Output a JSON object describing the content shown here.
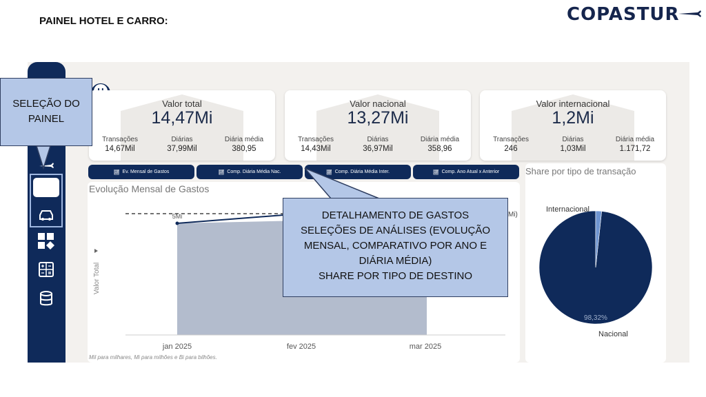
{
  "slide": {
    "title": "PAINEL HOTEL E CARRO:"
  },
  "logo": {
    "text": "COPASTUR"
  },
  "colors": {
    "navy": "#0f2a5a",
    "callout": "#b4c7e7",
    "area": "#b3bccd",
    "pie_main": "#0f2a5a",
    "pie_small": "#6f95d1"
  },
  "kpis": [
    {
      "label": "Valor total",
      "value": "14,47Mi",
      "subs": [
        {
          "label": "Transações",
          "value": "14,67Mil"
        },
        {
          "label": "Diárias",
          "value": "37,99Mil"
        },
        {
          "label": "Diária média",
          "value": "380,95"
        }
      ]
    },
    {
      "label": "Valor nacional",
      "value": "13,27Mi",
      "subs": [
        {
          "label": "Transações",
          "value": "14,43Mil"
        },
        {
          "label": "Diárias",
          "value": "36,97Mil"
        },
        {
          "label": "Diária média",
          "value": "358,96"
        }
      ]
    },
    {
      "label": "Valor internacional",
      "value": "1,2Mi",
      "subs": [
        {
          "label": "Transações",
          "value": "246"
        },
        {
          "label": "Diárias",
          "value": "1,03Mil"
        },
        {
          "label": "Diária média",
          "value": "1.171,72"
        }
      ]
    }
  ],
  "buttons": [
    {
      "label": "Ev. Mensal de Gastos"
    },
    {
      "label": "Comp. Diária Média Nac."
    },
    {
      "label": "Comp. Diária Média Inter."
    },
    {
      "label": "Comp. Ano Atual x Anterior"
    }
  ],
  "line_panel": {
    "title": "Evolução Mensal de Gastos",
    "footnote": "Mil para milhares, Mi para milhões e Bi para bilhões.",
    "ref_label": "Mi)"
  },
  "pie_panel": {
    "title": "Share por tipo de transação"
  },
  "chart_data": [
    {
      "type": "area",
      "title": "Evolução Mensal de Gastos",
      "ylabel": "Valor Total",
      "categories": [
        "jan 2025",
        "fev 2025",
        "mar 2025"
      ],
      "point_label": "5Mi"
    },
    {
      "type": "pie",
      "title": "Share por tipo de transação",
      "labels": [
        "Nacional",
        "Internacional"
      ],
      "values": [
        98.32,
        1.68
      ],
      "data_label": "98,32%"
    }
  ],
  "callouts": {
    "selecao": {
      "lines": [
        "SELEÇÃO DO",
        "PAINEL"
      ]
    },
    "detalhe": {
      "lines": [
        "DETALHAMENTO DE GASTOS",
        "SELEÇÕES DE ANÁLISES (EVOLUÇÃO",
        "MENSAL, COMPARATIVO POR ANO E",
        "DIÁRIA MÉDIA)",
        "SHARE POR TIPO DE DESTINO"
      ]
    }
  }
}
